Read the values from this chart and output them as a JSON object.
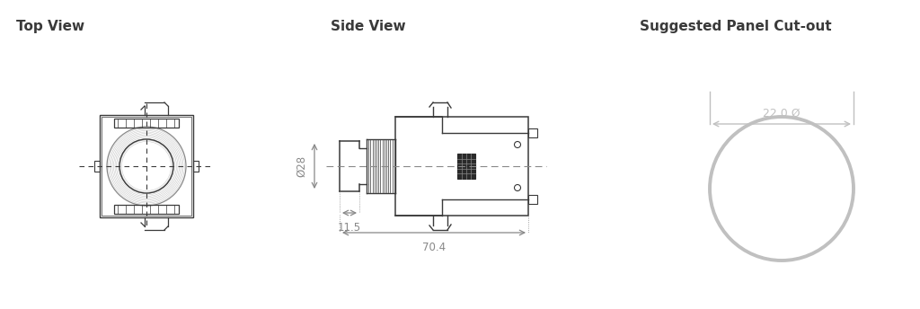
{
  "bg_color": "#ffffff",
  "line_color": "#3a3a3a",
  "dim_color": "#888888",
  "gray_color": "#c0c0c0",
  "title_fontsize": 11,
  "label_fontsize": 8.5,
  "top_view_title": "Top View",
  "side_view_title": "Side View",
  "panel_title": "Suggested Panel Cut-out",
  "dim_028": "Ø28",
  "dim_115": "11.5",
  "dim_704": "70.4",
  "dim_220": "22.0 Ø"
}
